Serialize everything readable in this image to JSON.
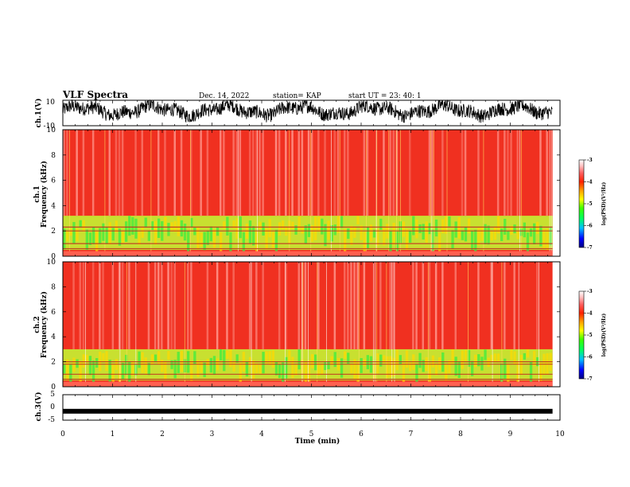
{
  "header": {
    "title": "VLF Spectra",
    "date": "Dec. 14, 2022",
    "station": "station= KAP",
    "start_ut": "start  UT  =   23: 40: 1"
  },
  "panels": {
    "ch1_wave": {
      "ylabel": "ch.1(V)",
      "ytick_top": "10",
      "ytick_bottom": "-10"
    },
    "ch1_spec": {
      "ylabel_line1": "ch.1",
      "ylabel_line2": "Frequency  (kHz)",
      "yticks": [
        "0",
        "2",
        "4",
        "6",
        "8",
        "10"
      ]
    },
    "ch2_spec": {
      "ylabel_line1": "ch.2",
      "ylabel_line2": "Frequency  (kHz)",
      "yticks": [
        "0",
        "2",
        "4",
        "6",
        "8",
        "10"
      ]
    },
    "ch3_wave": {
      "ylabel": "ch.3(V)",
      "ytick_top": "5",
      "ytick_mid": "0",
      "ytick_bottom": "-5"
    }
  },
  "xaxis": {
    "label": "Time  (min)",
    "ticks": [
      "0",
      "1",
      "2",
      "3",
      "4",
      "5",
      "6",
      "7",
      "8",
      "9",
      "10"
    ]
  },
  "colorbar": {
    "label": "log(PSD)(V²/Hz)",
    "ticks": [
      "-3",
      "-4",
      "-5",
      "-6",
      "-7"
    ],
    "colors": [
      "#000080",
      "#0000ff",
      "#00c0ff",
      "#00ff60",
      "#40ff00",
      "#ffff00",
      "#ffa000",
      "#ff2000",
      "#ff6060",
      "#ffc0c0",
      "#ffffff"
    ]
  },
  "chart_data": [
    {
      "type": "line",
      "xlabel": "Time  (min)",
      "ylabel": "ch.1(V)",
      "xlim": [
        0,
        10
      ],
      "ylim": [
        -10,
        10
      ],
      "data_end_min": 9.85
    },
    {
      "type": "heatmap",
      "xlabel": "Time  (min)",
      "ylabel": "Frequency  (kHz)",
      "xlim": [
        0,
        10
      ],
      "ylim": [
        0,
        10
      ],
      "z_label": "log(PSD)(V²/Hz)",
      "zlim": [
        -7,
        -3
      ],
      "background_log_psd": -3.5,
      "low_band_khz": [
        0.5,
        3.2
      ],
      "low_band_log_psd": -4.8,
      "horizontal_lines_khz": [
        0.6,
        1.0,
        2.0,
        2.3
      ],
      "data_end_min": 9.85
    },
    {
      "type": "heatmap",
      "xlabel": "Time  (min)",
      "ylabel": "Frequency  (kHz)",
      "xlim": [
        0,
        10
      ],
      "ylim": [
        0,
        10
      ],
      "z_label": "log(PSD)(V²/Hz)",
      "zlim": [
        -7,
        -3
      ],
      "background_log_psd": -3.5,
      "low_band_khz": [
        0.5,
        3.0
      ],
      "low_band_log_psd": -4.9,
      "horizontal_lines_khz": [
        0.6,
        1.0,
        1.8,
        2.0
      ],
      "data_end_min": 9.85
    },
    {
      "type": "line",
      "xlabel": "Time  (min)",
      "ylabel": "ch.3(V)",
      "xlim": [
        0,
        10
      ],
      "ylim": [
        -5,
        5
      ],
      "data_end_min": 9.85,
      "level_v": -1.5
    }
  ]
}
